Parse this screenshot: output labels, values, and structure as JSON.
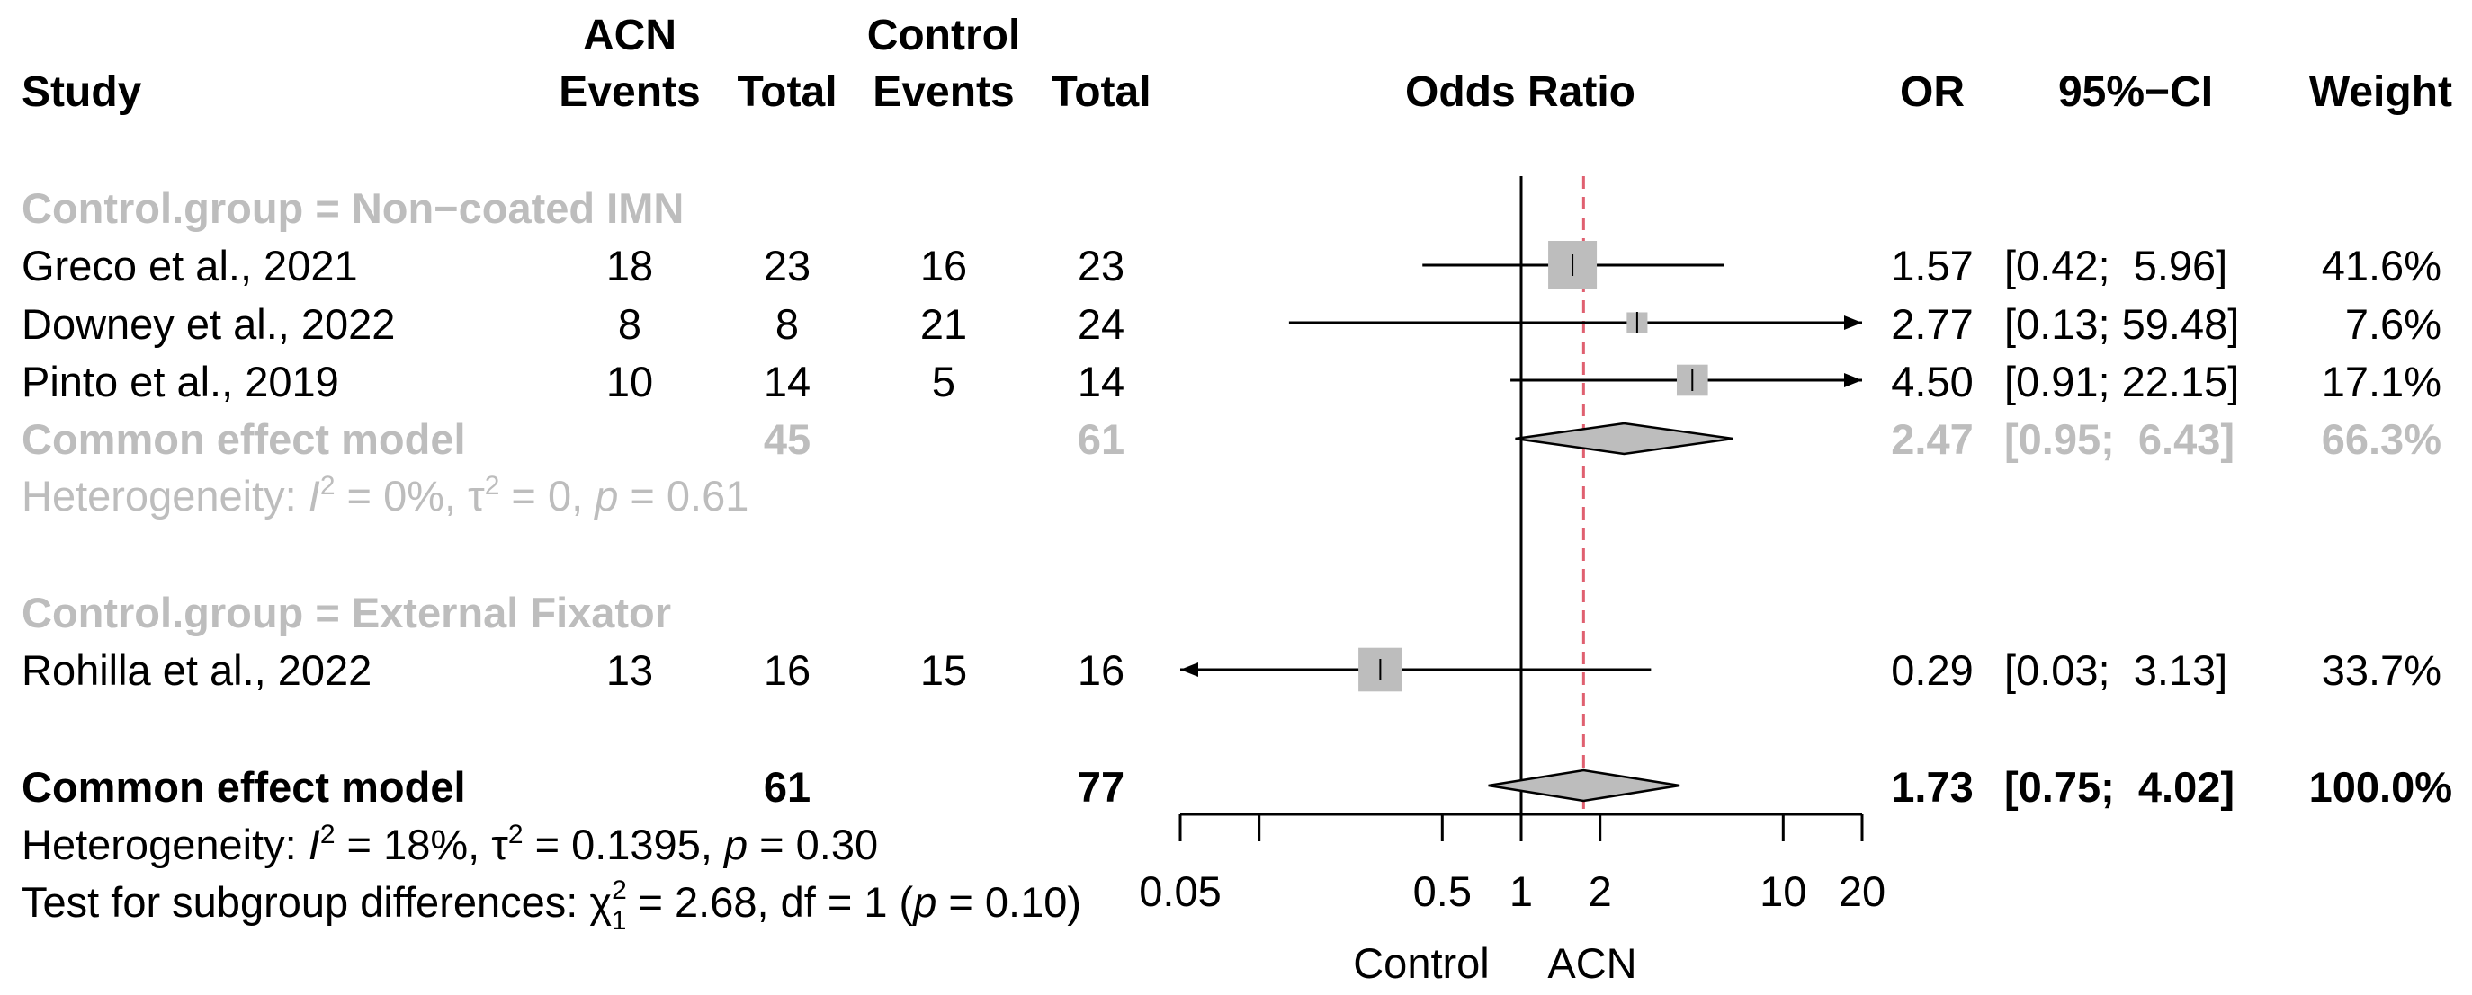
{
  "chart_data": {
    "type": "forest",
    "title": "",
    "measure_label": "Odds Ratio",
    "columns": {
      "study": "Study",
      "group_a_name": "ACN",
      "group_b_name": "Control",
      "events": "Events",
      "total": "Total",
      "or": "OR",
      "ci": "95%−CI",
      "weight": "Weight"
    },
    "xaxis": {
      "scale": "log",
      "range": [
        0.05,
        20
      ],
      "ticks": [
        0.05,
        0.1,
        0.5,
        1,
        2,
        10,
        20
      ],
      "tick_labels": [
        "0.05",
        "",
        "0.5",
        "1",
        "2",
        "10",
        "20"
      ],
      "left_label": "Control",
      "right_label": "ACN"
    },
    "reference_line": 1,
    "overall_dashed_line": 1.73,
    "subgroups": [
      {
        "label": "Control.group = Non−coated IMN",
        "studies": [
          {
            "name": "Greco et al., 2021",
            "e1": "18",
            "n1": "23",
            "e2": "16",
            "n2": "23",
            "or": 1.57,
            "lo": 0.42,
            "hi": 5.96,
            "or_text": "1.57",
            "ci_text": "[0.42;  5.96]",
            "weight_text": "41.6%",
            "weight": 41.6
          },
          {
            "name": "Downey et al., 2022",
            "e1": "8",
            "n1": "8",
            "e2": "21",
            "n2": "24",
            "or": 2.77,
            "lo": 0.13,
            "hi": 59.48,
            "or_text": "2.77",
            "ci_text": "[0.13; 59.48]",
            "weight_text": "7.6%",
            "weight": 7.6
          },
          {
            "name": "Pinto et al., 2019",
            "e1": "10",
            "n1": "14",
            "e2": "5",
            "n2": "14",
            "or": 4.5,
            "lo": 0.91,
            "hi": 22.15,
            "or_text": "4.50",
            "ci_text": "[0.91; 22.15]",
            "weight_text": "17.1%",
            "weight": 17.1
          }
        ],
        "model": {
          "label": "Common effect model",
          "n1": "45",
          "n2": "61",
          "or": 2.47,
          "lo": 0.95,
          "hi": 6.43,
          "or_text": "2.47",
          "ci_text": "[0.95;  6.43]",
          "weight_text": "66.3%"
        },
        "heterogeneity": {
          "prefix": "Heterogeneity: ",
          "i2_sym": "I",
          "sq": "2",
          "i2_val": " = 0%, ",
          "tau_sym": "τ",
          "tau_val": " = 0, ",
          "p_sym": "p",
          "p_val": " = 0.61"
        }
      },
      {
        "label": "Control.group = External Fixator",
        "studies": [
          {
            "name": "Rohilla et al., 2022",
            "e1": "13",
            "n1": "16",
            "e2": "15",
            "n2": "16",
            "or": 0.29,
            "lo": 0.03,
            "hi": 3.13,
            "or_text": "0.29",
            "ci_text": "[0.03;  3.13]",
            "weight_text": "33.7%",
            "weight": 33.7
          }
        ]
      }
    ],
    "overall": {
      "label": "Common effect model",
      "n1": "61",
      "n2": "77",
      "or": 1.73,
      "lo": 0.75,
      "hi": 4.02,
      "or_text": "1.73",
      "ci_text": "[0.75;  4.02]",
      "weight_text": "100.0%",
      "heterogeneity": {
        "prefix": "Heterogeneity: ",
        "i2_sym": "I",
        "sq": "2",
        "i2_val": " = 18%, ",
        "tau_sym": "τ",
        "tau_val": " = 0.1395, ",
        "p_sym": "p",
        "p_val": " = 0.30"
      },
      "subgroup_test": {
        "prefix": "Test for subgroup differences: ",
        "chi_sym": "χ",
        "sq": "2",
        "df_sub": "1",
        "stat": " = 2.68, df = 1 (",
        "p_sym": "p",
        "p_val": " = 0.10)"
      }
    }
  }
}
